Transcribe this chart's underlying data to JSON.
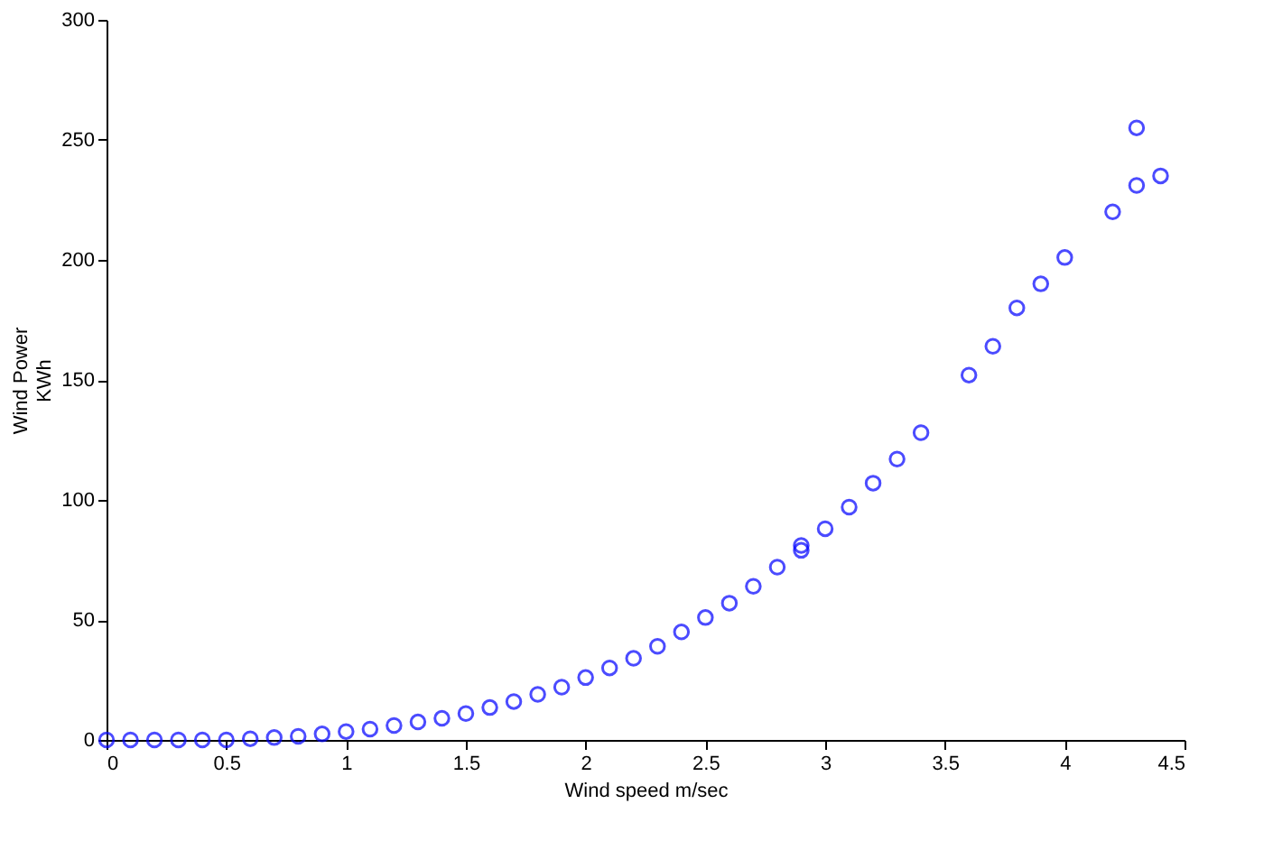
{
  "chart_data": {
    "type": "scatter",
    "xlabel": "Wind speed m/sec",
    "ylabel": "Wind Power\nKWh",
    "x": [
      0,
      0.1,
      0.2,
      0.3,
      0.4,
      0.5,
      0.6,
      0.7,
      0.8,
      0.9,
      1.0,
      1.1,
      1.2,
      1.3,
      1.4,
      1.5,
      1.6,
      1.7,
      1.8,
      1.9,
      2.0,
      2.1,
      2.2,
      2.3,
      2.4,
      2.5,
      2.6,
      2.7,
      2.8,
      2.9,
      2.9,
      3.0,
      3.1,
      3.2,
      3.3,
      3.4,
      3.6,
      3.7,
      3.8,
      3.9,
      4.0,
      4.2,
      4.3,
      4.3,
      4.4
    ],
    "series": [
      {
        "color": "#0000ff",
        "values": [
          0,
          0,
          0,
          0,
          0,
          0,
          0.5,
          1,
          1.5,
          2.5,
          3.5,
          4.5,
          6,
          7.5,
          9,
          11,
          13.5,
          16,
          19,
          22,
          26,
          30,
          34,
          39,
          45,
          51,
          57,
          64,
          72,
          79,
          81,
          88,
          97,
          107,
          117,
          128,
          152,
          164,
          180,
          190,
          201,
          220,
          255,
          231,
          235
        ]
      }
    ],
    "xlim": [
      0,
      4.5
    ],
    "xticks": [
      0,
      0.5,
      1,
      1.5,
      2,
      2.5,
      3,
      3.5,
      4,
      4.5
    ],
    "ylim": [
      0,
      300
    ],
    "yticks": [
      0,
      50,
      100,
      150,
      200,
      250,
      300
    ],
    "marker": "circle",
    "grid": false
  }
}
